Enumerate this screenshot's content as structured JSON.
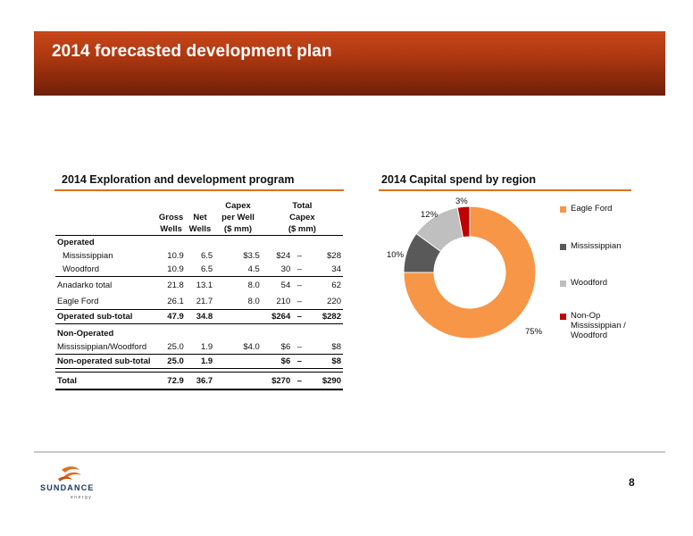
{
  "header": {
    "title": "2014 forecasted development plan"
  },
  "program": {
    "title": "2014 Exploration and development program",
    "headers": {
      "gross": [
        "Gross",
        "Wells"
      ],
      "net": [
        "Net",
        "Wells"
      ],
      "capex_well": [
        "Capex",
        "per Well",
        "($ mm)"
      ],
      "total_capex": [
        "Total",
        "Capex",
        "($ mm)"
      ]
    },
    "operated_label": "Operated",
    "rows_operated": [
      {
        "label": "Mississippian",
        "gross": "10.9",
        "net": "6.5",
        "per_well": "$3.5",
        "low": "$24",
        "dash": "–",
        "high": "$28"
      },
      {
        "label": "Woodford",
        "gross": "10.9",
        "net": "6.5",
        "per_well": "4.5",
        "low": "30",
        "dash": "–",
        "high": "34"
      },
      {
        "label": "Anadarko total",
        "gross": "21.8",
        "net": "13.1",
        "per_well": "8.0",
        "low": "54",
        "dash": "–",
        "high": "62"
      },
      {
        "label": "Eagle Ford",
        "gross": "26.1",
        "net": "21.7",
        "per_well": "8.0",
        "low": "210",
        "dash": "–",
        "high": "220"
      },
      {
        "label": "Operated sub-total",
        "gross": "47.9",
        "net": "34.8",
        "per_well": "",
        "low": "$264",
        "dash": "–",
        "high": "$282"
      }
    ],
    "nonop_label": "Non-Operated",
    "rows_nonop": [
      {
        "label": "Mississippian/Woodford",
        "gross": "25.0",
        "net": "1.9",
        "per_well": "$4.0",
        "low": "$6",
        "dash": "–",
        "high": "$8"
      },
      {
        "label": "Non-operated sub-total",
        "gross": "25.0",
        "net": "1.9",
        "per_well": "",
        "low": "$6",
        "dash": "–",
        "high": "$8"
      }
    ],
    "total": {
      "label": "Total",
      "gross": "72.9",
      "net": "36.7",
      "per_well": "",
      "low": "$270",
      "dash": "–",
      "high": "$290"
    }
  },
  "capital": {
    "title": "2014 Capital spend by region"
  },
  "chart_data": {
    "type": "pie",
    "donut": true,
    "title": "2014 Capital spend by region",
    "legend_position": "right",
    "slices": [
      {
        "name": "Eagle Ford",
        "value": 75,
        "label": "75%",
        "color": "#f79646"
      },
      {
        "name": "Mississippian",
        "value": 10,
        "label": "10%",
        "color": "#595959"
      },
      {
        "name": "Woodford",
        "value": 12,
        "label": "12%",
        "color": "#bfbfbf"
      },
      {
        "name": "Non-Op Mississippian / Woodford",
        "value": 3,
        "label": "3%",
        "color": "#c00000"
      }
    ],
    "legend_lines": [
      [
        "Eagle Ford"
      ],
      [
        "Mississippian"
      ],
      [
        "Woodford"
      ],
      [
        "Non-Op",
        "Mississippian /",
        "Woodford"
      ]
    ]
  },
  "footer": {
    "logo": {
      "name": "SUNDANCE",
      "sub": "energy"
    },
    "page_number": "8"
  },
  "colors": {
    "accent": "#e0701e",
    "banner": "#b13a12"
  }
}
